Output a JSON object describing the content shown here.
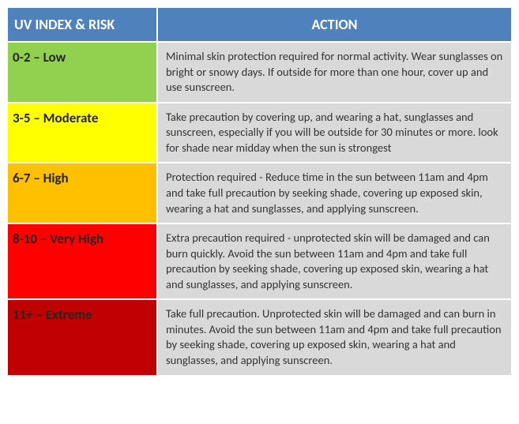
{
  "table": {
    "header": {
      "left": "UV INDEX & RISK",
      "right": "ACTION",
      "bg_color": "#4f81bd",
      "text_color": "#ffffff",
      "fontsize": 18,
      "fontweight": "bold"
    },
    "rows": [
      {
        "risk_label": "0-2 – Low",
        "risk_bg": "#92d050",
        "action_bg": "#d9d9d9",
        "action_text": "Minimal skin protection required for normal activity. Wear sunglasses on bright or snowy days. If outside for more than one hour, cover up and use sunscreen."
      },
      {
        "risk_label": "3-5 – Moderate",
        "risk_bg": "#ffff00",
        "action_bg": "#d9d9d9",
        "action_text": "Take precaution by covering up, and wearing a hat, sunglasses and sunscreen, especially if you will be outside for 30 minutes or more. look for shade near midday when the sun is strongest"
      },
      {
        "risk_label": "6-7 – High",
        "risk_bg": "#ffc000",
        "action_bg": "#d9d9d9",
        "action_text": "Protection required - Reduce time in the sun between 11am and 4pm and take full precaution by seeking shade, covering up exposed skin, wearing a hat and sunglasses, and applying sunscreen."
      },
      {
        "risk_label": "8-10 – Very High",
        "risk_bg": "#ff0000",
        "action_bg": "#d9d9d9",
        "action_text": "Extra precaution required - unprotected skin will be damaged and can burn quickly. Avoid the sun between 11am and 4pm and take full precaution by seeking shade, covering up exposed skin, wearing a hat and sunglasses, and applying sunscreen."
      },
      {
        "risk_label": "11+ – Extreme",
        "risk_bg": "#c00000",
        "action_bg": "#d9d9d9",
        "action_text": "Take full precaution. Unprotected skin will be damaged and can burn in minutes. Avoid the sun between 11am and 4pm and take full precaution by seeking shade, covering up exposed skin, wearing a hat and sunglasses, and applying sunscreen."
      }
    ],
    "border_color": "#ffffff",
    "risk_col_width": 190,
    "total_width": 641,
    "risk_fontsize": 17,
    "action_fontsize": 14.5,
    "risk_text_color": "#262626",
    "action_text_color": "#333333"
  }
}
